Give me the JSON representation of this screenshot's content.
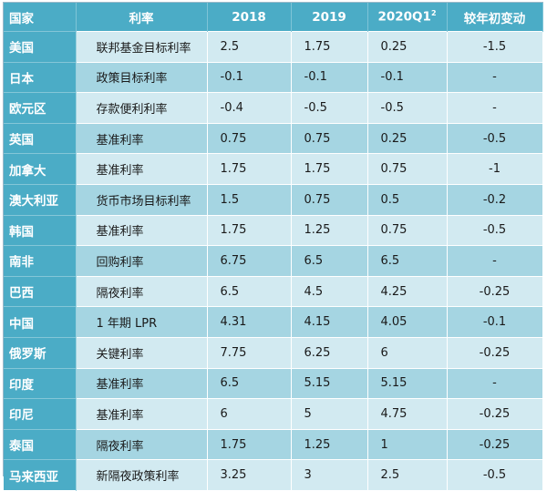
{
  "headers": {
    "country": "国家",
    "rate": "利率",
    "y2018": "2018",
    "y2019": "2019",
    "y2020q1_base": "2020Q1",
    "y2020q1_sup": "2",
    "change": "较年初变动"
  },
  "rows": [
    {
      "country": "美国",
      "rate": "联邦基金目标利率",
      "y2018": "2.5",
      "y2019": "1.75",
      "y2020q1": "0.25",
      "change": "-1.5"
    },
    {
      "country": "日本",
      "rate": "政策目标利率",
      "y2018": "-0.1",
      "y2019": "-0.1",
      "y2020q1": "-0.1",
      "change": "-"
    },
    {
      "country": "欧元区",
      "rate": "存款便利利率",
      "y2018": "-0.4",
      "y2019": "-0.5",
      "y2020q1": "-0.5",
      "change": "-"
    },
    {
      "country": "英国",
      "rate": "基准利率",
      "y2018": "0.75",
      "y2019": "0.75",
      "y2020q1": "0.25",
      "change": "-0.5"
    },
    {
      "country": "加拿大",
      "rate": "基准利率",
      "y2018": "1.75",
      "y2019": "1.75",
      "y2020q1": "0.75",
      "change": "-1"
    },
    {
      "country": "澳大利亚",
      "rate": "货币市场目标利率",
      "y2018": "1.5",
      "y2019": "0.75",
      "y2020q1": "0.5",
      "change": "-0.2"
    },
    {
      "country": "韩国",
      "rate": "基准利率",
      "y2018": "1.75",
      "y2019": "1.25",
      "y2020q1": "0.75",
      "change": "-0.5"
    },
    {
      "country": "南非",
      "rate": "回购利率",
      "y2018": "6.75",
      "y2019": "6.5",
      "y2020q1": "6.5",
      "change": "-"
    },
    {
      "country": "巴西",
      "rate": "隔夜利率",
      "y2018": "6.5",
      "y2019": "4.5",
      "y2020q1": "4.25",
      "change": "-0.25"
    },
    {
      "country": "中国",
      "rate": "1 年期 LPR",
      "y2018": "4.31",
      "y2019": "4.15",
      "y2020q1": "4.05",
      "change": "-0.1"
    },
    {
      "country": "俄罗斯",
      "rate": "关键利率",
      "y2018": "7.75",
      "y2019": "6.25",
      "y2020q1": "6",
      "change": "-0.25"
    },
    {
      "country": "印度",
      "rate": "基准利率",
      "y2018": "6.5",
      "y2019": "5.15",
      "y2020q1": "5.15",
      "change": "-"
    },
    {
      "country": "印尼",
      "rate": "基准利率",
      "y2018": "6",
      "y2019": "5",
      "y2020q1": "4.75",
      "change": "-0.25"
    },
    {
      "country": "泰国",
      "rate": "隔夜利率",
      "y2018": "1.75",
      "y2019": "1.25",
      "y2020q1": "1",
      "change": "-0.25"
    },
    {
      "country": "马来西亚",
      "rate": "新隔夜政策利率",
      "y2018": "3.25",
      "y2019": "3",
      "y2020q1": "2.5",
      "change": "-0.5"
    }
  ]
}
